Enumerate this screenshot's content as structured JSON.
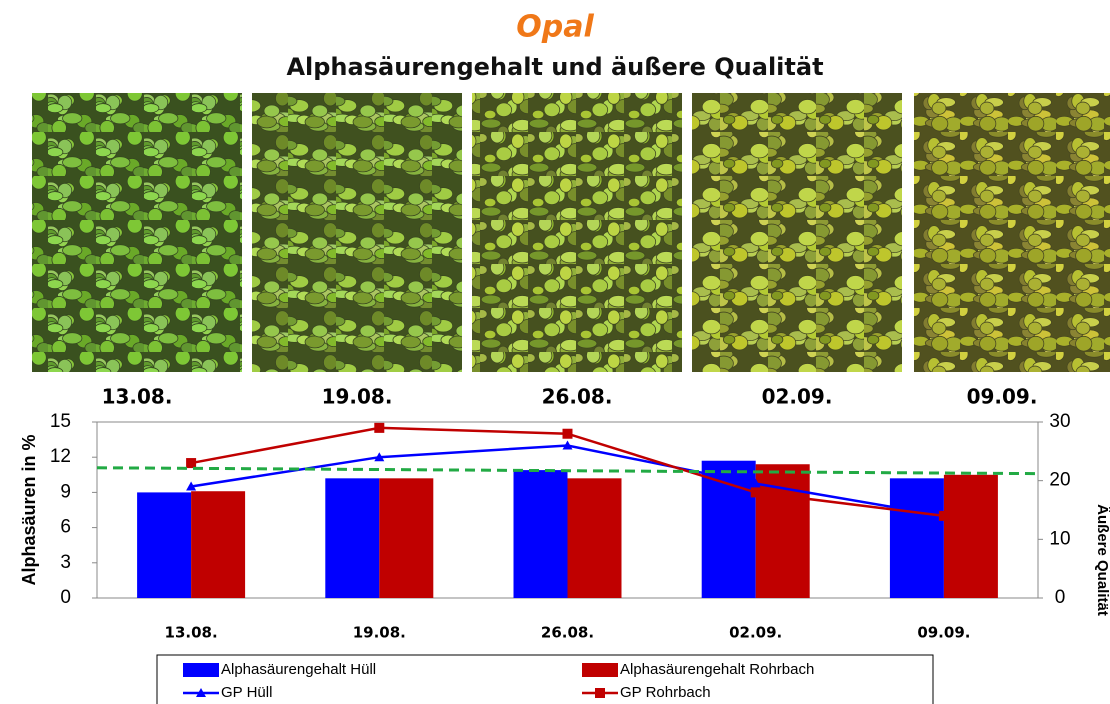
{
  "chart_data": {
    "type": "bar",
    "title": "Opal",
    "subtitle": "Alphasäurengehalt und äußere Qualität",
    "photo_labels": [
      "13.08.",
      "19.08.",
      "26.08.",
      "02.09.",
      "09.09."
    ],
    "categories": [
      "13.08.",
      "19.08.",
      "26.08.",
      "02.09.",
      "09.09."
    ],
    "y_label": "Alphasäuren  in %",
    "y2_label": "Äußere Qualität",
    "ylim": [
      0,
      15
    ],
    "yticks": [
      0,
      3,
      6,
      9,
      12,
      15
    ],
    "y2lim": [
      0,
      30
    ],
    "y2ticks": [
      0,
      10,
      20,
      30
    ],
    "series": [
      {
        "name": "Alphasäurengehalt Hüll",
        "type": "bar",
        "color": "#0000ff",
        "values": [
          9.0,
          10.2,
          10.9,
          11.7,
          10.2
        ]
      },
      {
        "name": "Alphasäurengehalt Rohrbach",
        "type": "bar",
        "color": "#c00000",
        "values": [
          9.1,
          10.2,
          10.2,
          11.4,
          10.5
        ]
      },
      {
        "name": "GP Hüll",
        "type": "line",
        "axis": "y2",
        "marker": "triangle",
        "color": "#0000ff",
        "values": [
          19,
          24,
          26,
          19.5,
          14
        ]
      },
      {
        "name": "GP Rohrbach",
        "type": "line",
        "axis": "y2",
        "marker": "square",
        "color": "#c00000",
        "values": [
          23,
          29,
          28,
          18,
          14
        ]
      }
    ],
    "threshold": {
      "axis": "y2",
      "values": [
        22.2,
        21.2
      ],
      "color": "#22aa44"
    }
  }
}
